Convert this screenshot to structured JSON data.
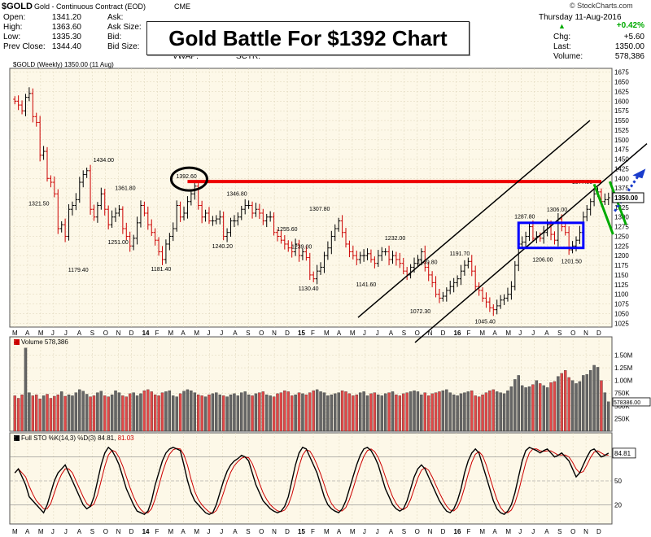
{
  "header": {
    "symbol": "$GOLD",
    "name": "Gold - Continuous Contract (EOD)",
    "exchange": "CME",
    "copyright": "© StockCharts.com",
    "date": "Thursday 11-Aug-2016",
    "fields_left": [
      {
        "label": "Open:",
        "value": "1341.20"
      },
      {
        "label": "High:",
        "value": "1363.60"
      },
      {
        "label": "Low:",
        "value": "1335.30"
      },
      {
        "label": "Prev Close:",
        "value": "1344.40"
      }
    ],
    "fields_mid": [
      "Ask:",
      "Ask Size:",
      "Bid:",
      "Bid Size:"
    ],
    "vwap": "VWAP:",
    "sctr": "SCTR:",
    "change_pct": "+0.42%",
    "fields_right": [
      {
        "label": "Chg:",
        "value": "+5.60"
      },
      {
        "label": "Last:",
        "value": "1350.00"
      },
      {
        "label": "Volume:",
        "value": "578,386"
      }
    ],
    "title": "Gold Battle For $1392 Chart",
    "price_legend": "$GOLD (Weekly) 1350.00 (11 Aug)",
    "volume_legend": "Volume 578,386",
    "sto_legend_prefix": "Full STO %K(14,3) %D(3)",
    "sto_k": "84.81",
    "sto_d": "81.03"
  },
  "colors": {
    "up": "#000000",
    "down": "#cc0000",
    "panel": "#fdf8e8",
    "resistance": "#ee0000",
    "box": "#0000ff",
    "flag": "#00aa00",
    "arrow": "#1a3ccc"
  },
  "chart_data": [
    {
      "type": "line",
      "name": "price",
      "y_ticks": [
        1025,
        1050,
        1075,
        1100,
        1125,
        1150,
        1175,
        1200,
        1225,
        1250,
        1275,
        1300,
        1325,
        1350,
        1375,
        1400,
        1425,
        1450,
        1475,
        1500,
        1525,
        1550,
        1575,
        1600,
        1625,
        1650,
        1675
      ],
      "ylim": [
        1015,
        1685
      ],
      "last_label": "1350.00",
      "x_months": [
        "M",
        "A",
        "M",
        "J",
        "J",
        "A",
        "S",
        "O",
        "N",
        "D",
        "14",
        "F",
        "M",
        "A",
        "M",
        "J",
        "J",
        "A",
        "S",
        "O",
        "N",
        "D",
        "15",
        "F",
        "M",
        "A",
        "M",
        "J",
        "J",
        "A",
        "S",
        "O",
        "N",
        "D",
        "16",
        "F",
        "M",
        "A",
        "M",
        "J",
        "J",
        "A",
        "S",
        "O",
        "N",
        "D"
      ],
      "weekly_close": [
        1600,
        1590,
        1575,
        1610,
        1620,
        1560,
        1545,
        1460,
        1470,
        1400,
        1390,
        1360,
        1270,
        1280,
        1250,
        1320,
        1330,
        1345,
        1390,
        1410,
        1420,
        1320,
        1300,
        1330,
        1360,
        1320,
        1280,
        1300,
        1310,
        1320,
        1270,
        1250,
        1225,
        1245,
        1285,
        1330,
        1310,
        1280,
        1260,
        1240,
        1210,
        1190,
        1230,
        1250,
        1270,
        1330,
        1300,
        1310,
        1340,
        1360,
        1380,
        1330,
        1300,
        1310,
        1290,
        1290,
        1295,
        1300,
        1250,
        1260,
        1290,
        1290,
        1300,
        1320,
        1330,
        1330,
        1310,
        1320,
        1310,
        1290,
        1300,
        1300,
        1260,
        1250,
        1240,
        1230,
        1220,
        1210,
        1230,
        1200,
        1210,
        1195,
        1150,
        1140,
        1160,
        1170,
        1200,
        1220,
        1250,
        1270,
        1290,
        1260,
        1230,
        1210,
        1200,
        1190,
        1200,
        1200,
        1205,
        1190,
        1180,
        1200,
        1210,
        1210,
        1190,
        1200,
        1190,
        1180,
        1160,
        1150,
        1170,
        1180,
        1190,
        1210,
        1170,
        1150,
        1130,
        1100,
        1090,
        1095,
        1110,
        1120,
        1130,
        1140,
        1160,
        1175,
        1185,
        1160,
        1120,
        1110,
        1090,
        1080,
        1065,
        1060,
        1070,
        1085,
        1090,
        1100,
        1120,
        1175,
        1230,
        1235,
        1250,
        1275,
        1245,
        1250,
        1245,
        1260,
        1280,
        1255,
        1240,
        1295,
        1275,
        1260,
        1215,
        1225,
        1240,
        1260,
        1300,
        1320,
        1340,
        1360,
        1365,
        1340,
        1345,
        1350
      ],
      "annotations": [
        {
          "label": "1434.00",
          "x": 25,
          "y": 1434
        },
        {
          "label": "1361.80",
          "x": 31,
          "y": 1361.8
        },
        {
          "label": "1321.50",
          "x": 7,
          "y": 1321.5
        },
        {
          "label": "1251.00",
          "x": 29,
          "y": 1251
        },
        {
          "label": "1179.40",
          "x": 18,
          "y": 1179.4
        },
        {
          "label": "1181.40",
          "x": 41,
          "y": 1181.4
        },
        {
          "label": "1392.60",
          "x": 48,
          "y": 1392.6
        },
        {
          "label": "1346.80",
          "x": 62,
          "y": 1346.8
        },
        {
          "label": "1240.20",
          "x": 58,
          "y": 1240.2
        },
        {
          "label": "1307.80",
          "x": 85,
          "y": 1307.8
        },
        {
          "label": "1255.60",
          "x": 76,
          "y": 1255.6
        },
        {
          "label": "1239.00",
          "x": 80,
          "y": 1239
        },
        {
          "label": "1130.40",
          "x": 82,
          "y": 1130.4
        },
        {
          "label": "1232.00",
          "x": 106,
          "y": 1232
        },
        {
          "label": "1141.60",
          "x": 98,
          "y": 1141.6
        },
        {
          "label": "1169.80",
          "x": 115,
          "y": 1169.8
        },
        {
          "label": "1191.70",
          "x": 124,
          "y": 1191.7
        },
        {
          "label": "1072.30",
          "x": 113,
          "y": 1072.3
        },
        {
          "label": "1045.40",
          "x": 131,
          "y": 1045.4
        },
        {
          "label": "1287.80",
          "x": 142,
          "y": 1287.8
        },
        {
          "label": "1306.00",
          "x": 151,
          "y": 1306
        },
        {
          "label": "1206.00",
          "x": 147,
          "y": 1206
        },
        {
          "label": "1201.50",
          "x": 155,
          "y": 1201.5
        },
        {
          "label": "1377.50",
          "x": 158,
          "y": 1377.5
        }
      ]
    },
    {
      "type": "bar",
      "name": "volume",
      "y_ticks_labels": [
        "250K",
        "500K",
        "750K",
        "1.00M",
        "1.25M",
        "1.50M"
      ],
      "y_ticks": [
        250,
        500,
        750,
        1000,
        1250,
        1500
      ],
      "ylim": [
        0,
        1700
      ],
      "last_label": "578386.00",
      "weekly_volume_k": [
        700,
        650,
        720,
        1640,
        760,
        700,
        720,
        640,
        700,
        730,
        650,
        690,
        720,
        780,
        690,
        720,
        700,
        760,
        820,
        790,
        730,
        680,
        700,
        760,
        790,
        700,
        680,
        720,
        800,
        760,
        700,
        680,
        740,
        760,
        700,
        740,
        800,
        820,
        780,
        720,
        700,
        760,
        780,
        800,
        700,
        680,
        740,
        790,
        820,
        800,
        760,
        720,
        700,
        680,
        720,
        740,
        760,
        720,
        700,
        680,
        720,
        740,
        700,
        760,
        780,
        720,
        700,
        740,
        760,
        780,
        720,
        700,
        680,
        740,
        760,
        800,
        780,
        700,
        720,
        760,
        740,
        720,
        760,
        800,
        820,
        780,
        760,
        700,
        720,
        740,
        760,
        800,
        780,
        740,
        700,
        720,
        760,
        780,
        700,
        740,
        760,
        720,
        700,
        740,
        760,
        780,
        720,
        700,
        740,
        760,
        780,
        800,
        780,
        720,
        760,
        700,
        740,
        760,
        780,
        800,
        820,
        760,
        720,
        700,
        740,
        760,
        780,
        800,
        700,
        680,
        720,
        760,
        800,
        820,
        780,
        760,
        740,
        800,
        880,
        1020,
        1100,
        900,
        860,
        880,
        920,
        1000,
        940,
        900,
        860,
        960,
        980,
        1080,
        1140,
        1200,
        1060,
        1000,
        940,
        980,
        1100,
        1120,
        1200,
        1300,
        1260,
        1000,
        760,
        580
      ],
      "last_value_k": 578
    },
    {
      "type": "line",
      "name": "stochastic",
      "y_ticks": [
        20,
        50,
        80
      ],
      "ylim": [
        0,
        100
      ],
      "k_last": 84.81,
      "d_last": 81.03,
      "k_values": [
        60,
        65,
        55,
        45,
        30,
        25,
        20,
        15,
        10,
        20,
        35,
        50,
        60,
        65,
        70,
        60,
        50,
        40,
        30,
        20,
        15,
        18,
        30,
        50,
        70,
        85,
        92,
        88,
        80,
        70,
        55,
        40,
        30,
        20,
        12,
        10,
        8,
        12,
        25,
        45,
        60,
        75,
        85,
        90,
        92,
        90,
        88,
        70,
        50,
        35,
        25,
        20,
        15,
        10,
        8,
        10,
        20,
        35,
        50,
        62,
        70,
        75,
        78,
        82,
        80,
        75,
        60,
        45,
        35,
        25,
        20,
        15,
        12,
        10,
        12,
        18,
        30,
        50,
        70,
        85,
        92,
        90,
        80,
        70,
        60,
        45,
        30,
        20,
        15,
        12,
        10,
        15,
        25,
        40,
        55,
        70,
        82,
        90,
        92,
        88,
        80,
        70,
        55,
        40,
        30,
        20,
        15,
        12,
        15,
        25,
        40,
        55,
        65,
        70,
        65,
        55,
        45,
        35,
        25,
        18,
        12,
        10,
        15,
        25,
        40,
        60,
        75,
        85,
        90,
        85,
        70,
        55,
        40,
        25,
        15,
        10,
        8,
        12,
        20,
        35,
        55,
        75,
        88,
        92,
        90,
        88,
        85,
        88,
        90,
        85,
        80,
        82,
        85,
        80,
        75,
        65,
        55,
        60,
        70,
        80,
        88,
        90,
        85,
        80,
        82,
        84.81
      ]
    }
  ],
  "x_axis_months": [
    "M",
    "A",
    "M",
    "J",
    "J",
    "A",
    "S",
    "O",
    "N",
    "D",
    "14",
    "F",
    "M",
    "A",
    "M",
    "J",
    "J",
    "A",
    "S",
    "O",
    "N",
    "D",
    "15",
    "F",
    "M",
    "A",
    "M",
    "J",
    "J",
    "A",
    "S",
    "O",
    "N",
    "D",
    "16",
    "F",
    "M",
    "A",
    "M",
    "J",
    "J",
    "A",
    "S",
    "O",
    "N",
    "D"
  ],
  "sto_labels": [
    "84.81",
    "50",
    "20"
  ]
}
